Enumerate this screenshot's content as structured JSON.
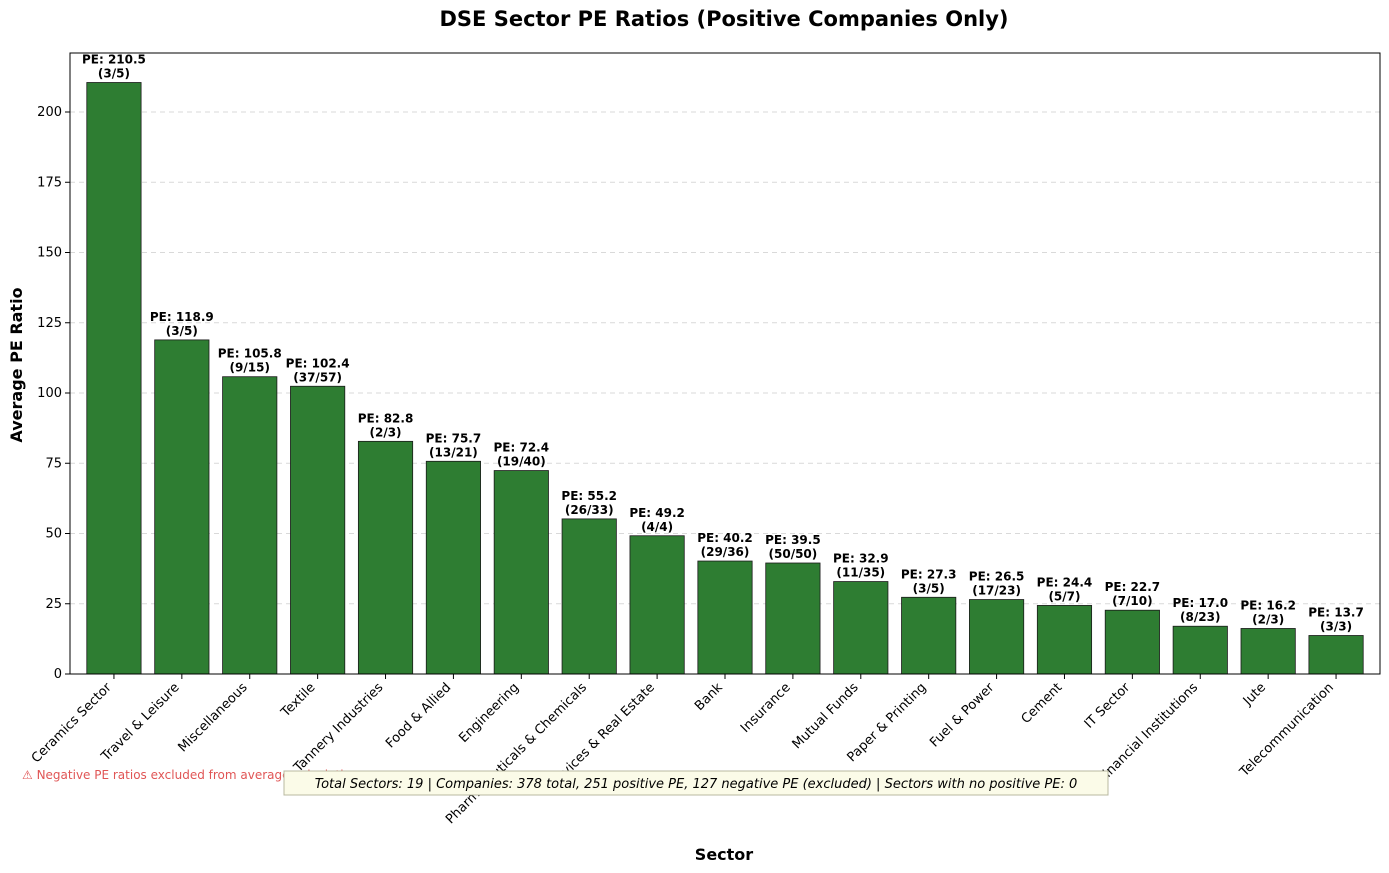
{
  "chart_data": {
    "type": "bar",
    "title": "DSE Sector PE Ratios (Positive Companies Only)",
    "xlabel": "Sector",
    "ylabel": "Average PE Ratio",
    "ylim": [
      0,
      221
    ],
    "yticks": [
      0,
      25,
      50,
      75,
      100,
      125,
      150,
      175,
      200
    ],
    "grid": "y-dashed",
    "bar_color": "#2e7d32",
    "categories": [
      "Ceramics Sector",
      "Travel & Leisure",
      "Miscellaneous",
      "Textile",
      "Tannery Industries",
      "Food & Allied",
      "Engineering",
      "Pharmaceuticals & Chemicals",
      "Services & Real Estate",
      "Bank",
      "Insurance",
      "Mutual Funds",
      "Paper & Printing",
      "Fuel & Power",
      "Cement",
      "IT Sector",
      "Financial Institutions",
      "Jute",
      "Telecommunication"
    ],
    "values": [
      210.5,
      118.9,
      105.8,
      102.4,
      82.8,
      75.7,
      72.4,
      55.2,
      49.2,
      40.2,
      39.5,
      32.9,
      27.3,
      26.5,
      24.4,
      22.7,
      17.0,
      16.2,
      13.7
    ],
    "value_labels": [
      "PE: 210.5",
      "PE: 118.9",
      "PE: 105.8",
      "PE: 102.4",
      "PE: 82.8",
      "PE: 75.7",
      "PE: 72.4",
      "PE: 55.2",
      "PE: 49.2",
      "PE: 40.2",
      "PE: 39.5",
      "PE: 32.9",
      "PE: 27.3",
      "PE: 26.5",
      "PE: 24.4",
      "PE: 22.7",
      "PE: 17.0",
      "PE: 16.2",
      "PE: 13.7"
    ],
    "count_labels": [
      "(3/5)",
      "(3/5)",
      "(9/15)",
      "(37/57)",
      "(2/3)",
      "(13/21)",
      "(19/40)",
      "(26/33)",
      "(4/4)",
      "(29/36)",
      "(50/50)",
      "(11/35)",
      "(3/5)",
      "(17/23)",
      "(5/7)",
      "(7/10)",
      "(8/23)",
      "(2/3)",
      "(3/3)"
    ]
  },
  "notes": {
    "warning": "⚠ Negative PE ratios excluded from average calculation",
    "summary": "Total Sectors: 19 | Companies: 378 total, 251 positive PE, 127 negative PE (excluded) | Sectors with no positive PE: 0"
  }
}
